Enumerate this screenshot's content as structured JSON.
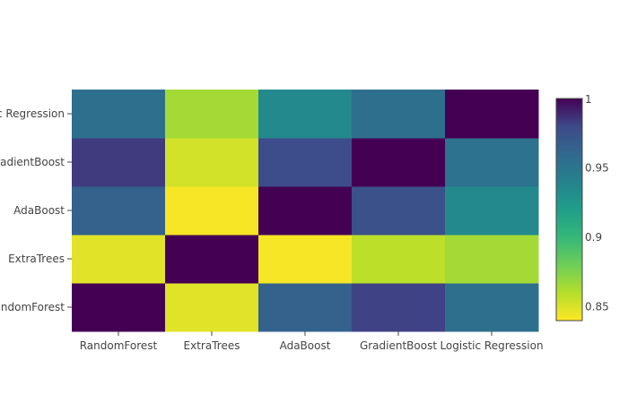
{
  "chart_data": {
    "type": "heatmap",
    "x_categories": [
      "RandomForest",
      "ExtraTrees",
      "AdaBoost",
      "GradientBoost",
      "Logistic Regression"
    ],
    "y_categories": [
      "RandomForest",
      "ExtraTrees",
      "AdaBoost",
      "GradientBoost",
      "Logistic Regression"
    ],
    "values": [
      [
        1.0,
        0.848,
        0.964,
        0.982,
        0.955
      ],
      [
        0.848,
        1.0,
        0.842,
        0.858,
        0.865
      ],
      [
        0.964,
        0.842,
        1.0,
        0.975,
        0.935
      ],
      [
        0.984,
        0.852,
        0.978,
        1.0,
        0.952
      ],
      [
        0.955,
        0.865,
        0.935,
        0.955,
        1.0
      ]
    ],
    "colorscale": "Viridis (reversed)",
    "zrange": [
      0.84,
      1.0
    ],
    "colorbar": {
      "ticks": [
        0.85,
        0.9,
        0.95,
        1
      ],
      "tick_labels": [
        "0.85",
        "0.9",
        "0.95",
        "1"
      ]
    }
  }
}
